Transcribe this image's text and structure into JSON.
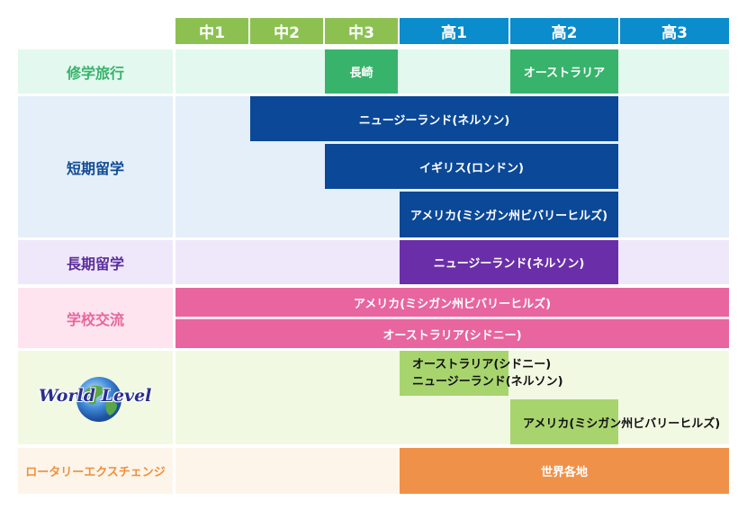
{
  "headers": {
    "c1": "中1",
    "c2": "中2",
    "c3": "中3",
    "s1": "高1",
    "s2": "高2",
    "s3": "高3"
  },
  "rows": {
    "shugaku": {
      "label": "修学旅行",
      "bar1": "長崎",
      "bar2": "オーストラリア"
    },
    "tanki": {
      "label": "短期留学",
      "bar1": "ニュージーランド(ネルソン)",
      "bar2": "イギリス(ロンドン)",
      "bar3": "アメリカ(ミシガン州ビバリーヒルズ)"
    },
    "choki": {
      "label": "長期留学",
      "bar1": "ニュージーランド(ネルソン)"
    },
    "gakko": {
      "label": "学校交流",
      "bar1": "アメリカ(ミシガン州ビバリーヒルズ)",
      "bar2": "オーストラリア(シドニー)"
    },
    "world": {
      "logo_text": "World Level",
      "bar1_line1": "オーストラリア(シドニー)",
      "bar1_line2": "ニュージーランド(ネルソン)",
      "bar2": "アメリカ(ミシガン州ビバリーヒルズ)"
    },
    "rotary": {
      "label": "ロータリーエクスチェンジ",
      "bar1": "世界各地"
    }
  },
  "colors": {
    "junior_header": "#8cc152",
    "senior_header": "#0b8ccc",
    "shugaku_bg": "#e3f8ee",
    "shugaku_label": "#37b36b",
    "shugaku_bar": "#37b36b",
    "tanki_bg": "#e4eff9",
    "tanki_label": "#0f4a94",
    "tanki_bar": "#0b4897",
    "choki_bg": "#efe7fa",
    "choki_label": "#5a2d9c",
    "choki_bar": "#6a2fa8",
    "gakko_bg": "#fde4ee",
    "gakko_label": "#e7669e",
    "gakko_bar": "#e8659f",
    "world_bg": "#f2f9e3",
    "world_bar": "#a8d46e",
    "rotary_bg": "#fdf5ea",
    "rotary_label": "#ef8f3c",
    "rotary_bar": "#f0914a"
  }
}
